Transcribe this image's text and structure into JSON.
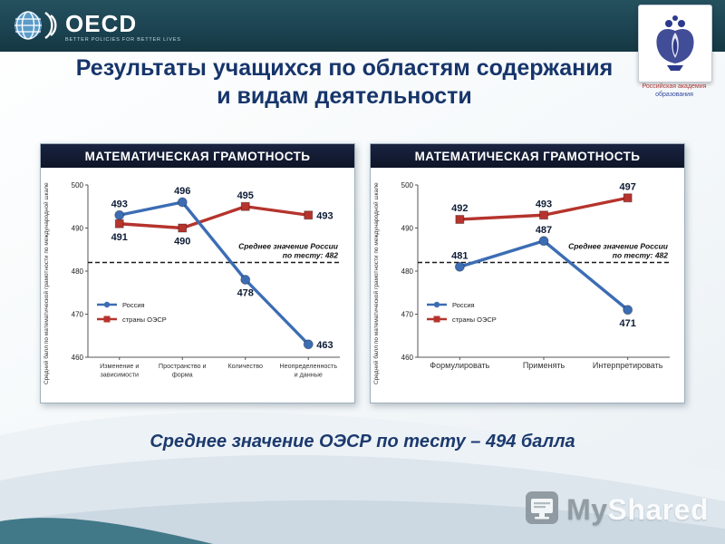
{
  "header_bar": {
    "oecd_name": "OECD",
    "oecd_tagline": "BETTER POLICIES FOR BETTER LIVES",
    "academy_caption_line1": "Российская академия",
    "academy_caption_line2": "образования"
  },
  "title": {
    "line1": "Результаты учащихся по областям содержания",
    "line2": "и видам деятельности"
  },
  "footer_note": "Среднее значение ОЭСР по тесту – 494 балла",
  "watermark": {
    "my": "My",
    "shared": "Shared"
  },
  "colors": {
    "russia_blue": "#3c6db4",
    "oecd_red": "#b5342d",
    "title_blue": "#17356b"
  },
  "chart_data": [
    {
      "type": "line",
      "title": "МАТЕМАТИЧЕСКАЯ ГРАМОТНОСТЬ",
      "ylabel": "Средний балл по математической грамотности по международной шкале",
      "ylim": [
        460,
        500
      ],
      "ytick_step": 10,
      "grid": false,
      "legend_position": "inside-left",
      "xtick_fontsize": 7.2,
      "categories": [
        "Изменение и зависимости",
        "Пространство и форма",
        "Количество",
        "Неопределенность и данные"
      ],
      "series": [
        {
          "name": "Россия",
          "marker": "circle",
          "color": "#3c6db4",
          "values": [
            493,
            496,
            478,
            463
          ],
          "label_pos": [
            "above",
            "above",
            "below",
            "right"
          ]
        },
        {
          "name": "страны ОЭСР",
          "marker": "square",
          "color": "#b5342d",
          "values": [
            491,
            490,
            495,
            493
          ],
          "label_pos": [
            "below",
            "below",
            "above",
            "right"
          ]
        }
      ],
      "ref_line": {
        "value": 482,
        "label_lines": [
          "Среднее значение России",
          "по тесту: 482"
        ]
      }
    },
    {
      "type": "line",
      "title": "МАТЕМАТИЧЕСКАЯ ГРАМОТНОСТЬ",
      "ylabel": "Средний балл по математической грамотности по международной шкале",
      "ylim": [
        460,
        500
      ],
      "ytick_step": 10,
      "grid": false,
      "legend_position": "inside-left",
      "xtick_fontsize": 9,
      "categories": [
        "Формулировать",
        "Применять",
        "Интерпретировать"
      ],
      "series": [
        {
          "name": "Россия",
          "marker": "circle",
          "color": "#3c6db4",
          "values": [
            481,
            487,
            471
          ],
          "label_pos": [
            "above",
            "above",
            "below"
          ]
        },
        {
          "name": "страны ОЭСР",
          "marker": "square",
          "color": "#b5342d",
          "values": [
            492,
            493,
            497
          ],
          "label_pos": [
            "above",
            "above",
            "above"
          ]
        }
      ],
      "ref_line": {
        "value": 482,
        "label_lines": [
          "Среднее значение России",
          "по тесту: 482"
        ]
      }
    }
  ]
}
